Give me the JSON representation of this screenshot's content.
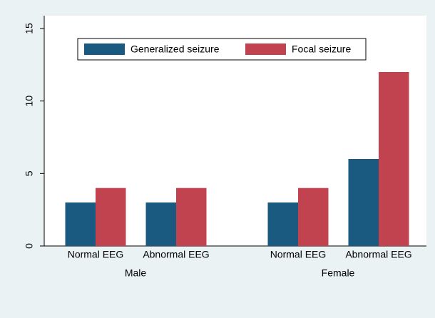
{
  "chart_data": {
    "type": "bar",
    "groups": [
      {
        "label": "Male",
        "categories": [
          "Normal EEG",
          "Abnormal EEG"
        ]
      },
      {
        "label": "Female",
        "categories": [
          "Normal EEG",
          "Abnormal EEG"
        ]
      }
    ],
    "series": [
      {
        "name": "Generalized seizure",
        "color": "#1a5a80",
        "values": [
          3,
          3,
          3,
          6
        ]
      },
      {
        "name": "Focal seizure",
        "color": "#c0434f",
        "values": [
          4,
          4,
          4,
          12
        ]
      }
    ],
    "ylim": [
      0,
      15
    ],
    "yticks": [
      0,
      5,
      10,
      15
    ],
    "grid": false,
    "legend": "top"
  }
}
